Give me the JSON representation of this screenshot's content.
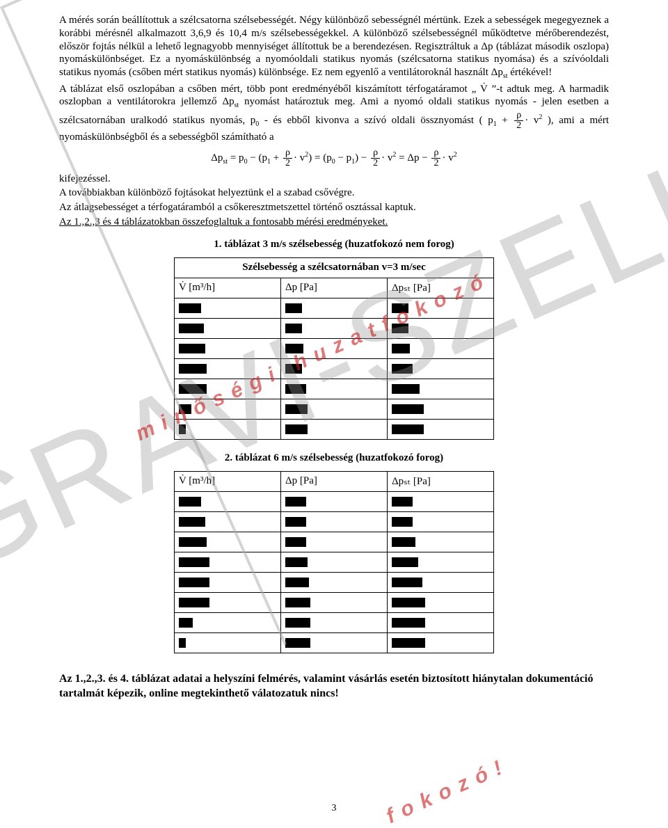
{
  "watermark": {
    "big": "GRAVI-SZELL",
    "red1": "minőségi huzatfokozó",
    "red2": "fokozó!"
  },
  "para1": "A mérés során beállítottuk a szélcsatorna szélsebességét. Négy különböző sebességnél mértünk. Ezek a sebességek megegyeznek a korábbi mérésnél alkalmazott 3,6,9 és 10,4 m/s szélsebességekkel. A különböző szélsebességnél működtetve mérőberendezést, először fojtás nélkül a lehető legnagyobb mennyiséget állítottuk be a berendezésen. Regisztráltuk a Δp (táblázat második oszlopa) nyomáskülönbséget. Ez a nyomáskülönbség a nyomóoldali statikus nyomás (szélcsatorna statikus nyomása) és a szívóoldali statikus nyomás (csőben mért statikus nyomás) különbsége. Ez nem egyenlő a ventilátoroknál használt Δp",
  "para1_tail": " értékével!",
  "para2_a": "A táblázat első oszlopában a csőben mért, több pont eredményéből kiszámított térfogatáramot „ V̇ ”-t adtuk meg. A harmadik oszlopban a ventilátorokra jellemző Δp",
  "para2_b": " nyomást határoztuk meg. Ami a nyomó oldali statikus nyomás - jelen esetben a szélcsatornában uralkodó statikus nyomás, p",
  "para2_c": " - és ebből kivonva a szívó oldali össznyomást ( p",
  "para2_d": " ),   ami  a  mért nyomáskülönbségből és a sebességből számítható a",
  "after_formula": "kifejezéssel.",
  "para3": "A továbbiakban különböző fojtásokat helyeztünk el a  szabad csővégre.",
  "para4": "Az átlagsebességet a térfogatáramból a csőkeresztmetszettel történő osztással kaptuk.",
  "para5": "Az 1.,2.,3 és 4 táblázatokban összefoglaltuk a fontosabb mérési eredményeket.",
  "table1": {
    "caption": "1. táblázat  3 m/s szélsebesség (huzatfokozó nem forog)",
    "topheader": "Szélsebesség a szélcsatornában v=3 m/sec",
    "col1": "V̇  [m³/h]",
    "col2": "Δp [Pa]",
    "col3": "Δpₛₜ [Pa]",
    "redact_widths": [
      [
        32,
        24,
        24
      ],
      [
        36,
        24,
        24
      ],
      [
        38,
        26,
        26
      ],
      [
        40,
        24,
        30
      ],
      [
        40,
        30,
        40
      ],
      [
        18,
        32,
        46
      ],
      [
        10,
        32,
        46
      ]
    ]
  },
  "table2": {
    "caption": "2. táblázat  6 m/s szélsebesség (huzatfokozó forog)",
    "col1": "V̇  [m³/h]",
    "col2": "Δp [Pa]",
    "col3": "Δpₛₜ [Pa]",
    "redact_widths": [
      [
        32,
        30,
        30
      ],
      [
        38,
        30,
        30
      ],
      [
        40,
        30,
        34
      ],
      [
        44,
        32,
        38
      ],
      [
        44,
        34,
        44
      ],
      [
        44,
        36,
        48
      ],
      [
        20,
        36,
        48
      ],
      [
        10,
        36,
        48
      ]
    ]
  },
  "footer": "Az 1.,2.,3. és 4. táblázat adatai a helyszíni felmérés, valamint vásárlás esetén biztosított hiánytalan dokumentáció tartalmát képezik, online megtekinthető válatozatuk nincs!",
  "page_number": "3"
}
